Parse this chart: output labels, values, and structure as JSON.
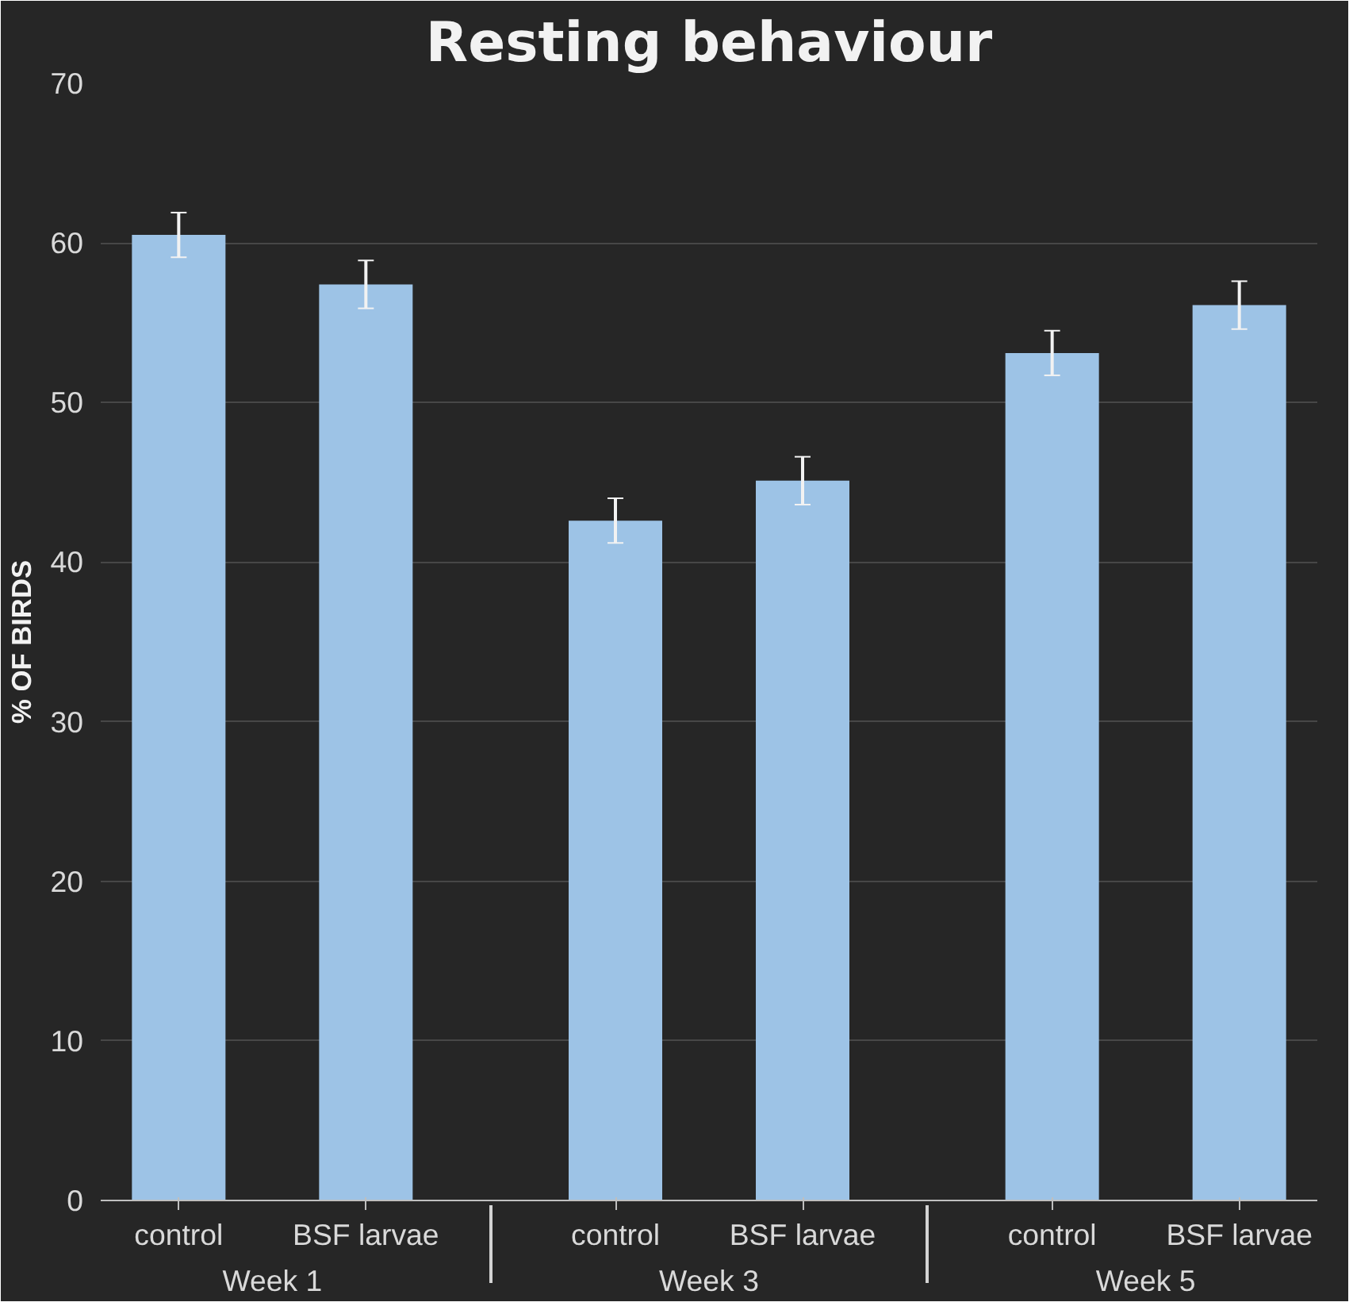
{
  "chart_data": {
    "type": "bar",
    "title": "Resting behaviour",
    "ylabel": "% OF BIRDS",
    "categories": [
      "control",
      "BSF larvae",
      "control",
      "BSF larvae",
      "control",
      "BSF larvae"
    ],
    "annotations": [
      "Week 1",
      "Week 3",
      "Week 5"
    ],
    "values": [
      60.5,
      57.4,
      42.6,
      45.1,
      53.1,
      56.1
    ],
    "errors": [
      1.4,
      1.5,
      1.4,
      1.5,
      1.4,
      1.5
    ],
    "color": "#9dc3e6",
    "ylim": [
      0,
      70
    ],
    "yticks": [
      0,
      10,
      20,
      30,
      40,
      50,
      60,
      70
    ],
    "grid": "y"
  }
}
